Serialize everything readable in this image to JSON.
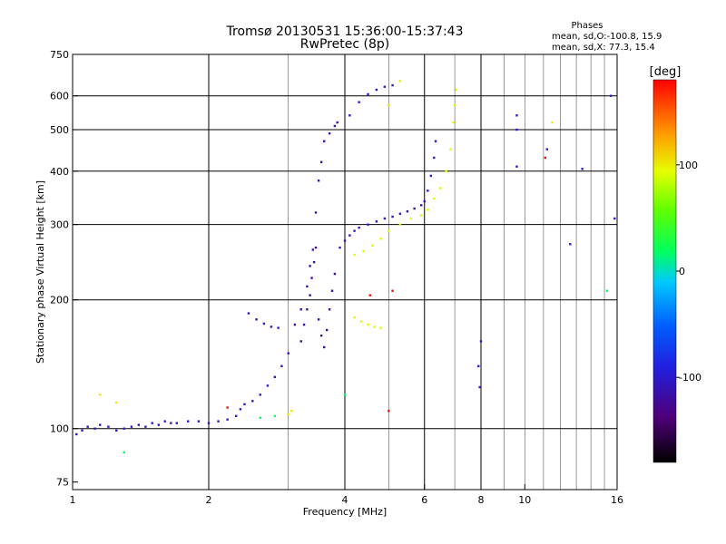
{
  "chart_data": {
    "type": "scatter",
    "title": "Tromsø 20130531 15:36:00-15:37:43",
    "subtitle": "RwPretec (8p)",
    "xlabel": "Frequency [MHz]",
    "ylabel": "Stationary phase Virtual Height [km]",
    "x_scale": "log",
    "y_scale": "log",
    "xlim": [
      1,
      16
    ],
    "ylim": [
      72,
      750
    ],
    "x_ticks": [
      1,
      2,
      4,
      6,
      8,
      10,
      16
    ],
    "x_tick_labels": [
      "1",
      "2",
      "4",
      "6",
      "8",
      "10",
      "16"
    ],
    "x_major_grid": [
      2,
      4,
      6,
      8
    ],
    "x_minor_grid": [
      3,
      5,
      7,
      9,
      10,
      11,
      12,
      13,
      14,
      15
    ],
    "y_ticks": [
      75,
      100,
      200,
      300,
      400,
      500,
      600,
      750
    ],
    "y_tick_labels": [
      "75",
      "100",
      "200",
      "300",
      "400",
      "500",
      "600",
      "750"
    ],
    "y_grid": [
      100,
      200,
      300,
      400,
      500,
      600
    ],
    "grid": true,
    "info": {
      "heading": "Phases",
      "line_o": "mean, sd,O:-100.8, 15.9",
      "line_x": "mean, sd,X:  77.3, 15.4"
    },
    "colorbar": {
      "label": "[deg]",
      "min": -180,
      "max": 180,
      "ticks": [
        100,
        0,
        -100
      ],
      "tick_labels": [
        "100",
        "0",
        "-100"
      ]
    },
    "series": [
      {
        "phase": -100,
        "points": [
          [
            1.02,
            97
          ],
          [
            1.05,
            99
          ],
          [
            1.08,
            101
          ],
          [
            1.12,
            100
          ],
          [
            1.15,
            102
          ],
          [
            1.2,
            101
          ],
          [
            1.25,
            99
          ],
          [
            1.3,
            100
          ],
          [
            1.35,
            101
          ],
          [
            1.4,
            102
          ],
          [
            1.45,
            101
          ],
          [
            1.5,
            103
          ],
          [
            1.55,
            102
          ],
          [
            1.6,
            104
          ],
          [
            1.65,
            103
          ],
          [
            1.7,
            103
          ],
          [
            1.8,
            104
          ],
          [
            1.9,
            104
          ],
          [
            2.0,
            103
          ],
          [
            2.1,
            104
          ],
          [
            2.2,
            105
          ],
          [
            2.3,
            107
          ],
          [
            2.35,
            111
          ],
          [
            2.4,
            114
          ],
          [
            2.5,
            116
          ],
          [
            2.6,
            120
          ],
          [
            2.7,
            126
          ],
          [
            2.8,
            132
          ],
          [
            2.9,
            140
          ],
          [
            3.0,
            150
          ]
        ]
      },
      {
        "phase": -100,
        "points": [
          [
            2.45,
            186
          ],
          [
            2.55,
            180
          ],
          [
            2.65,
            176
          ],
          [
            2.75,
            173
          ],
          [
            2.85,
            172
          ]
        ]
      },
      {
        "phase": -110,
        "points": [
          [
            3.1,
            175
          ],
          [
            3.2,
            190
          ],
          [
            3.3,
            215
          ],
          [
            3.35,
            240
          ],
          [
            3.4,
            262
          ],
          [
            3.45,
            320
          ],
          [
            3.5,
            380
          ],
          [
            3.55,
            420
          ],
          [
            3.6,
            470
          ],
          [
            3.7,
            490
          ],
          [
            3.8,
            510
          ],
          [
            3.85,
            520
          ]
        ]
      },
      {
        "phase": -120,
        "points": [
          [
            3.2,
            160
          ],
          [
            3.25,
            175
          ],
          [
            3.3,
            190
          ],
          [
            3.35,
            205
          ],
          [
            3.38,
            225
          ],
          [
            3.42,
            245
          ],
          [
            3.45,
            265
          ],
          [
            3.5,
            180
          ],
          [
            3.55,
            165
          ],
          [
            3.6,
            155
          ],
          [
            3.65,
            170
          ],
          [
            3.7,
            190
          ],
          [
            3.75,
            210
          ],
          [
            3.8,
            230
          ]
        ]
      },
      {
        "phase": -100,
        "points": [
          [
            3.9,
            265
          ],
          [
            4.0,
            275
          ],
          [
            4.1,
            283
          ],
          [
            4.2,
            290
          ],
          [
            4.3,
            295
          ],
          [
            4.5,
            300
          ],
          [
            4.7,
            305
          ],
          [
            4.9,
            310
          ],
          [
            5.1,
            313
          ],
          [
            5.3,
            318
          ],
          [
            5.5,
            322
          ],
          [
            5.7,
            327
          ],
          [
            5.9,
            333
          ],
          [
            6.0,
            340
          ],
          [
            6.1,
            360
          ],
          [
            6.2,
            390
          ],
          [
            6.3,
            430
          ],
          [
            6.35,
            470
          ]
        ]
      },
      {
        "phase": -100,
        "points": [
          [
            4.1,
            540
          ],
          [
            4.3,
            580
          ],
          [
            4.5,
            605
          ],
          [
            4.7,
            620
          ],
          [
            4.9,
            630
          ],
          [
            5.1,
            635
          ]
        ]
      },
      {
        "phase": 90,
        "points": [
          [
            4.2,
            255
          ],
          [
            4.4,
            260
          ],
          [
            4.6,
            268
          ],
          [
            4.8,
            278
          ],
          [
            5.0,
            290
          ],
          [
            5.3,
            300
          ],
          [
            5.6,
            310
          ],
          [
            5.9,
            315
          ],
          [
            6.1,
            325
          ],
          [
            6.3,
            345
          ],
          [
            6.5,
            365
          ],
          [
            6.7,
            400
          ],
          [
            6.85,
            450
          ],
          [
            6.95,
            520
          ],
          [
            7.0,
            570
          ],
          [
            7.05,
            620
          ]
        ]
      },
      {
        "phase": 90,
        "points": [
          [
            4.2,
            182
          ],
          [
            4.35,
            178
          ],
          [
            4.5,
            175
          ],
          [
            4.65,
            173
          ],
          [
            4.8,
            172
          ]
        ]
      },
      {
        "phase": 100,
        "points": [
          [
            1.15,
            120
          ],
          [
            1.25,
            115
          ],
          [
            3.0,
            108
          ],
          [
            3.05,
            110
          ],
          [
            5.3,
            650
          ],
          [
            5.0,
            570
          ],
          [
            11.5,
            520
          ]
        ]
      },
      {
        "phase": -95,
        "points": [
          [
            9.6,
            540
          ],
          [
            9.6,
            500
          ],
          [
            9.6,
            410
          ],
          [
            11.2,
            450
          ],
          [
            13.4,
            405
          ],
          [
            15.5,
            600
          ],
          [
            15.8,
            310
          ],
          [
            12.6,
            270
          ],
          [
            8.0,
            160
          ],
          [
            7.9,
            140
          ],
          [
            7.95,
            125
          ]
        ]
      },
      {
        "phase": 175,
        "points": [
          [
            4.55,
            205
          ],
          [
            5.1,
            210
          ],
          [
            11.1,
            430
          ],
          [
            5.0,
            110
          ],
          [
            2.2,
            112
          ]
        ]
      },
      {
        "phase": 20,
        "points": [
          [
            1.3,
            88
          ],
          [
            2.6,
            106
          ],
          [
            2.8,
            107
          ],
          [
            4.0,
            120
          ],
          [
            15.2,
            210
          ]
        ]
      }
    ]
  }
}
